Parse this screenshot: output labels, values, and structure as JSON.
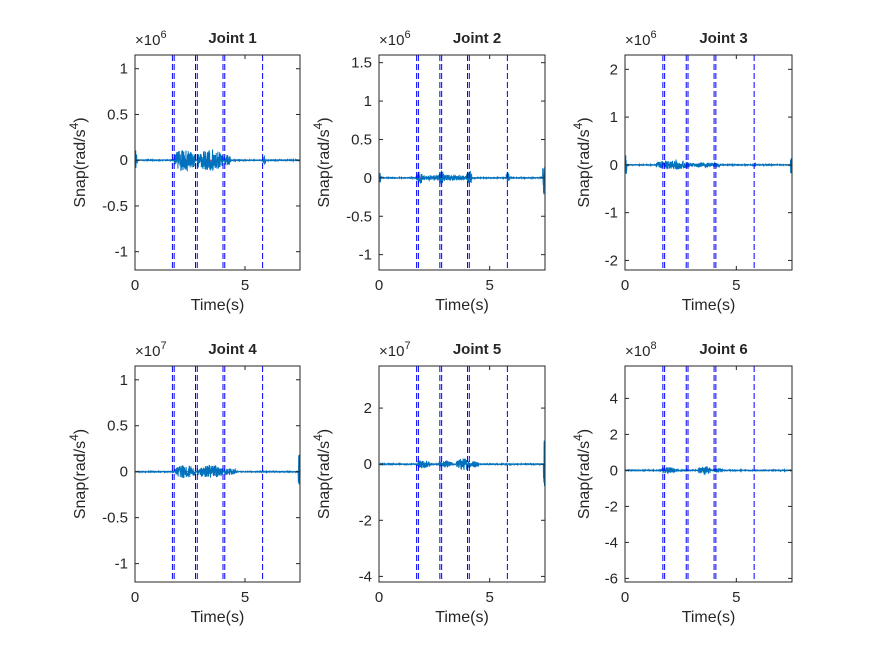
{
  "figure": {
    "background": "#ffffff",
    "signal_color": "#0072bd",
    "event_line_color": "#0000ff",
    "reference_line_color": "#ff0000"
  },
  "chart_data": [
    {
      "type": "line",
      "title": "Joint 1",
      "exponent_base": "×10",
      "exponent": "6",
      "xlabel": "Time(s)",
      "ylabel_main": "Snap(rad/s",
      "ylabel_power": "4",
      "ylabel_close": ")",
      "xlim": [
        0,
        7.5
      ],
      "ylim": [
        -1.2,
        1.15
      ],
      "xticks": [
        0,
        5
      ],
      "xtick_labels": [
        "0",
        "5"
      ],
      "yticks": [
        -1,
        -0.5,
        0,
        0.5,
        1
      ],
      "ytick_labels": [
        "-1",
        "-0.5",
        "0",
        "0.5",
        "1"
      ],
      "vertical_lines": [
        1.7,
        1.78,
        2.75,
        2.83,
        4.0,
        4.08,
        5.8
      ],
      "activity": [
        {
          "start": 0.0,
          "end": 0.1,
          "amplitude": 0.12
        },
        {
          "start": 1.78,
          "end": 2.75,
          "amplitude": 0.12
        },
        {
          "start": 2.83,
          "end": 4.0,
          "amplitude": 0.12
        },
        {
          "start": 4.05,
          "end": 4.35,
          "amplitude": 0.06
        },
        {
          "start": 5.8,
          "end": 5.95,
          "amplitude": 0.05
        }
      ],
      "series": [
        {
          "values": []
        }
      ]
    },
    {
      "type": "line",
      "title": "Joint 2",
      "exponent_base": "×10",
      "exponent": "6",
      "xlabel": "Time(s)",
      "ylabel_main": "Snap(rad/s",
      "ylabel_power": "4",
      "ylabel_close": ")",
      "xlim": [
        0,
        7.5
      ],
      "ylim": [
        -1.2,
        1.6
      ],
      "xticks": [
        0,
        5
      ],
      "xtick_labels": [
        "0",
        "5"
      ],
      "yticks": [
        -1,
        -0.5,
        0,
        0.5,
        1,
        1.5
      ],
      "ytick_labels": [
        "-1",
        "-0.5",
        "0",
        "0.5",
        "1",
        "1.5"
      ],
      "vertical_lines": [
        1.7,
        1.78,
        2.75,
        2.83,
        4.0,
        4.08,
        5.8
      ],
      "activity": [
        {
          "start": 0.0,
          "end": 0.1,
          "amplitude": 0.07
        },
        {
          "start": 1.7,
          "end": 1.95,
          "amplitude": 0.09
        },
        {
          "start": 1.95,
          "end": 4.2,
          "amplitude": 0.04
        },
        {
          "start": 2.7,
          "end": 2.95,
          "amplitude": 0.1
        },
        {
          "start": 3.95,
          "end": 4.2,
          "amplitude": 0.1
        },
        {
          "start": 5.75,
          "end": 5.9,
          "amplitude": 0.08
        },
        {
          "start": 7.4,
          "end": 7.5,
          "amplitude": 0.25
        }
      ],
      "series": [
        {
          "values": []
        }
      ]
    },
    {
      "type": "line",
      "title": "Joint 3",
      "exponent_base": "×10",
      "exponent": "6",
      "xlabel": "Time(s)",
      "ylabel_main": "Snap(rad/s",
      "ylabel_power": "4",
      "ylabel_close": ")",
      "xlim": [
        0,
        7.5
      ],
      "ylim": [
        -2.2,
        2.3
      ],
      "xticks": [
        0,
        5
      ],
      "xtick_labels": [
        "0",
        "5"
      ],
      "yticks": [
        -2,
        -1,
        0,
        1,
        2
      ],
      "ytick_labels": [
        "-2",
        "-1",
        "0",
        "1",
        "2"
      ],
      "vertical_lines": [
        1.7,
        1.78,
        2.75,
        2.83,
        4.0,
        4.08,
        5.8
      ],
      "activity": [
        {
          "start": 0.0,
          "end": 0.08,
          "amplitude": 0.25
        },
        {
          "start": 1.4,
          "end": 2.9,
          "amplitude": 0.1
        },
        {
          "start": 2.9,
          "end": 4.3,
          "amplitude": 0.05
        },
        {
          "start": 5.75,
          "end": 5.9,
          "amplitude": 0.04
        },
        {
          "start": 7.42,
          "end": 7.5,
          "amplitude": 0.22
        }
      ],
      "series": [
        {
          "values": []
        }
      ]
    },
    {
      "type": "line",
      "title": "Joint 4",
      "exponent_base": "×10",
      "exponent": "7",
      "xlabel": "Time(s)",
      "ylabel_main": "Snap(rad/s",
      "ylabel_power": "4",
      "ylabel_close": ")",
      "xlim": [
        0,
        7.5
      ],
      "ylim": [
        -1.2,
        1.15
      ],
      "xticks": [
        0,
        5
      ],
      "xtick_labels": [
        "0",
        "5"
      ],
      "yticks": [
        -1,
        -0.5,
        0,
        0.5,
        1
      ],
      "ytick_labels": [
        "-1",
        "-0.5",
        "0",
        "0.5",
        "1"
      ],
      "vertical_lines": [
        1.7,
        1.78,
        2.75,
        2.83,
        4.0,
        4.08,
        5.8
      ],
      "activity": [
        {
          "start": 1.78,
          "end": 2.75,
          "amplitude": 0.07
        },
        {
          "start": 2.83,
          "end": 4.0,
          "amplitude": 0.07
        },
        {
          "start": 4.05,
          "end": 4.6,
          "amplitude": 0.04
        },
        {
          "start": 7.42,
          "end": 7.5,
          "amplitude": 0.22
        }
      ],
      "series": [
        {
          "values": []
        }
      ]
    },
    {
      "type": "line",
      "title": "Joint 5",
      "exponent_base": "×10",
      "exponent": "7",
      "xlabel": "Time(s)",
      "ylabel_main": "Snap(rad/s",
      "ylabel_power": "4",
      "ylabel_close": ")",
      "xlim": [
        0,
        7.5
      ],
      "ylim": [
        -4.2,
        3.5
      ],
      "xticks": [
        0,
        5
      ],
      "xtick_labels": [
        "0",
        "5"
      ],
      "yticks": [
        -4,
        -2,
        0,
        2
      ],
      "ytick_labels": [
        "-4",
        "-2",
        "0",
        "2"
      ],
      "vertical_lines": [
        1.7,
        1.78,
        2.75,
        2.83,
        4.0,
        4.08,
        5.8
      ],
      "activity": [
        {
          "start": 1.7,
          "end": 2.3,
          "amplitude": 0.15
        },
        {
          "start": 2.7,
          "end": 3.3,
          "amplitude": 0.12
        },
        {
          "start": 3.5,
          "end": 4.1,
          "amplitude": 0.22
        },
        {
          "start": 4.1,
          "end": 4.5,
          "amplitude": 0.12
        },
        {
          "start": 7.42,
          "end": 7.5,
          "amplitude": 1.0
        }
      ],
      "series": [
        {
          "values": []
        }
      ]
    },
    {
      "type": "line",
      "title": "Joint 6",
      "exponent_base": "×10",
      "exponent": "8",
      "xlabel": "Time(s)",
      "ylabel_main": "Snap(rad/s",
      "ylabel_power": "4",
      "ylabel_close": ")",
      "xlim": [
        0,
        7.5
      ],
      "ylim": [
        -6.2,
        5.8
      ],
      "xticks": [
        0,
        5
      ],
      "xtick_labels": [
        "0",
        "5"
      ],
      "yticks": [
        -6,
        -4,
        -2,
        0,
        2,
        4
      ],
      "ytick_labels": [
        "-6",
        "-4",
        "-2",
        "0",
        "2",
        "4"
      ],
      "vertical_lines": [
        1.7,
        1.78,
        2.75,
        2.83,
        4.0,
        4.08,
        5.8
      ],
      "activity": [
        {
          "start": 1.6,
          "end": 2.3,
          "amplitude": 0.18
        },
        {
          "start": 3.3,
          "end": 3.85,
          "amplitude": 0.25
        },
        {
          "start": 4.0,
          "end": 4.4,
          "amplitude": 0.12
        }
      ],
      "series": [
        {
          "values": []
        }
      ]
    }
  ]
}
